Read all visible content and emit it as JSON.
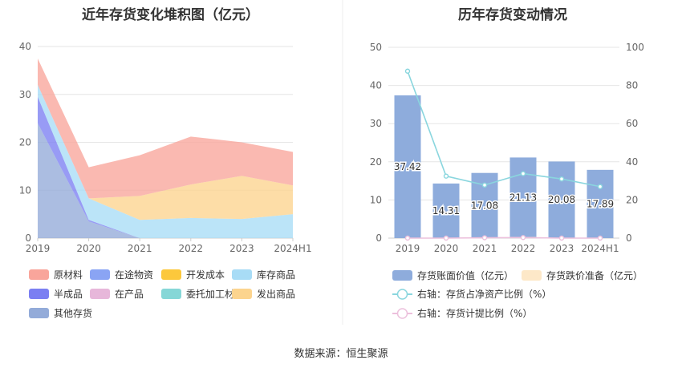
{
  "page": {
    "source": "数据来源：恒生聚源"
  },
  "chart_data": [
    {
      "type": "area",
      "title": "近年存货变化堆积图（亿元）",
      "stacked": true,
      "categories": [
        "2019",
        "2020",
        "2021",
        "2022",
        "2023",
        "2024H1"
      ],
      "ylim": [
        0,
        40
      ],
      "yticks": [
        0,
        10,
        20,
        30,
        40
      ],
      "grid": true,
      "legend_position": "bottom",
      "series": [
        {
          "name": "原材料",
          "color": "#f9a59b",
          "values": [
            5.5,
            6.5,
            8.5,
            10,
            7,
            7
          ]
        },
        {
          "name": "在途物资",
          "color": "#8aa4f4",
          "values": [
            0,
            0,
            0,
            0,
            0,
            0
          ]
        },
        {
          "name": "开发成本",
          "color": "#fcc83c",
          "values": [
            0,
            0,
            0,
            0,
            0,
            0
          ]
        },
        {
          "name": "库存商品",
          "color": "#a8dcf6",
          "values": [
            2.5,
            4.5,
            3.8,
            4.2,
            4,
            5
          ]
        },
        {
          "name": "半成品",
          "color": "#7b7ff2",
          "values": [
            5.5,
            0.3,
            0,
            0,
            0,
            0
          ]
        },
        {
          "name": "在产品",
          "color": "#e7b7da",
          "values": [
            0,
            0,
            0,
            0,
            0,
            0
          ]
        },
        {
          "name": "委托加工材料",
          "color": "#86d7d7",
          "values": [
            0,
            0,
            0,
            0,
            0,
            0
          ]
        },
        {
          "name": "发出商品",
          "color": "#fcd48e",
          "values": [
            0,
            0,
            5,
            7,
            9,
            6
          ]
        },
        {
          "name": "其他存货",
          "color": "#93abd9",
          "values": [
            24,
            3.5,
            0,
            0,
            0,
            0
          ]
        }
      ]
    },
    {
      "type": "bar",
      "title": "历年存货变动情况",
      "categories": [
        "2019",
        "2020",
        "2021",
        "2022",
        "2023",
        "2024H1"
      ],
      "ylim": [
        0,
        50
      ],
      "yticks": [
        0,
        10,
        20,
        30,
        40,
        50
      ],
      "y2lim": [
        0,
        100
      ],
      "y2ticks": [
        0,
        20,
        40,
        60,
        80,
        100
      ],
      "grid": true,
      "legend_position": "bottom",
      "series": [
        {
          "name": "存货账面价值（亿元）",
          "type": "bar",
          "axis": "left",
          "color": "#8eacdc",
          "values": [
            37.42,
            14.31,
            17.08,
            21.13,
            20.08,
            17.89
          ],
          "labels": [
            "37.42",
            "14.31",
            "17.08",
            "21.13",
            "20.08",
            "17.89"
          ]
        },
        {
          "name": "存货跌价准备（亿元）",
          "type": "bar",
          "axis": "left",
          "color": "#fde8c8",
          "values": [
            0,
            0,
            0,
            0.1,
            0,
            0
          ]
        },
        {
          "name": "右轴：存货占净资产比例（%）",
          "type": "line",
          "axis": "right",
          "color": "#8ad6de",
          "values": [
            87.5,
            32.5,
            27.8,
            33.8,
            31,
            27
          ]
        },
        {
          "name": "右轴：存货计提比例（%）",
          "type": "line",
          "axis": "right",
          "color": "#ecc0dc",
          "values": [
            0,
            0,
            0.2,
            0.3,
            0,
            0
          ]
        }
      ]
    }
  ]
}
